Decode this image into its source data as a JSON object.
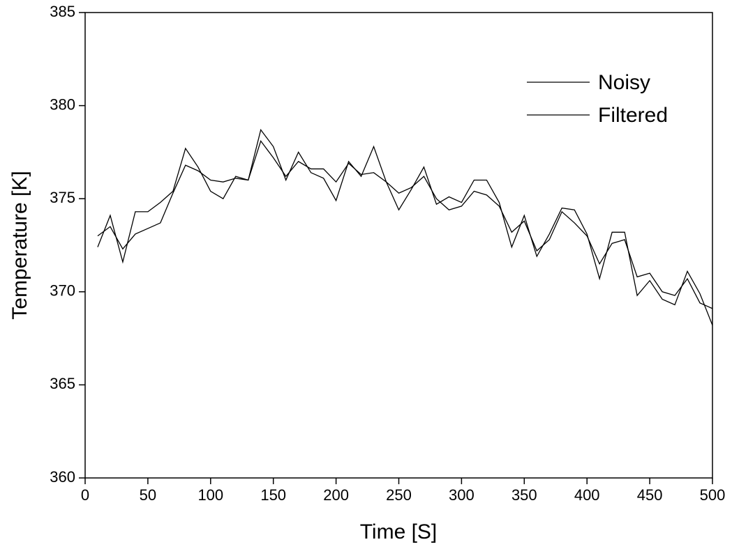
{
  "chart_data": {
    "type": "line",
    "x_label": "Time [S]",
    "y_label": "Temperature [K]",
    "x": [
      10,
      20,
      30,
      40,
      50,
      60,
      70,
      80,
      90,
      100,
      110,
      120,
      130,
      140,
      150,
      160,
      170,
      180,
      190,
      200,
      210,
      220,
      230,
      240,
      250,
      260,
      270,
      280,
      290,
      300,
      310,
      320,
      330,
      340,
      350,
      360,
      370,
      380,
      390,
      400,
      410,
      420,
      430,
      440,
      450,
      460,
      470,
      480,
      490,
      500
    ],
    "series": [
      {
        "name": "Noisy",
        "color": "#000000",
        "values": [
          372.4,
          374.1,
          371.6,
          374.3,
          374.3,
          374.8,
          375.4,
          377.7,
          376.7,
          375.4,
          375.0,
          376.2,
          376.0,
          378.7,
          377.8,
          376.0,
          377.5,
          376.4,
          376.1,
          374.9,
          377.0,
          376.2,
          377.8,
          375.9,
          374.4,
          375.5,
          376.7,
          374.7,
          375.1,
          374.8,
          376.0,
          376.0,
          374.8,
          372.4,
          374.1,
          371.9,
          373.1,
          374.5,
          374.4,
          373.1,
          370.7,
          373.2,
          373.2,
          369.8,
          370.6,
          369.6,
          369.3,
          371.1,
          369.9,
          368.2
        ]
      },
      {
        "name": "Filtered",
        "color": "#000000",
        "values": [
          373.0,
          373.5,
          372.3,
          373.1,
          373.4,
          373.7,
          375.3,
          376.8,
          376.5,
          376.0,
          375.9,
          376.1,
          376.0,
          378.1,
          377.2,
          376.2,
          377.0,
          376.6,
          376.6,
          375.9,
          376.9,
          376.3,
          376.4,
          375.9,
          375.3,
          375.6,
          376.2,
          375.0,
          374.4,
          374.6,
          375.4,
          375.2,
          374.6,
          373.2,
          373.8,
          372.2,
          372.8,
          374.3,
          373.7,
          373.0,
          371.5,
          372.6,
          372.8,
          370.8,
          371.0,
          370.0,
          369.8,
          370.7,
          369.4,
          369.1
        ]
      }
    ],
    "xlim": [
      0,
      500
    ],
    "xticks": [
      0,
      50,
      100,
      150,
      200,
      250,
      300,
      350,
      400,
      450,
      500
    ],
    "ylim": [
      360,
      385
    ],
    "yticks": [
      360,
      365,
      370,
      375,
      380,
      385
    ],
    "legend_position": "upper right"
  }
}
